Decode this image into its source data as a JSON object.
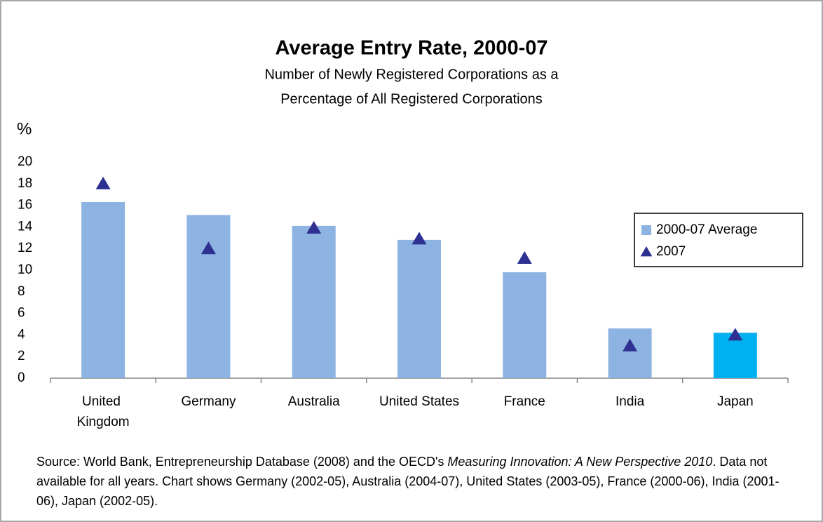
{
  "chart_data": {
    "type": "bar",
    "title": "Average Entry Rate, 2000-07",
    "subtitle": [
      "Number of Newly Registered Corporations as a",
      "Percentage of All Registered Corporations"
    ],
    "y_axis_label": "%",
    "categories": [
      "United Kingdom",
      "Germany",
      "Australia",
      "United States",
      "France",
      "India",
      "Japan"
    ],
    "series": [
      {
        "name": "2000-07 Average",
        "kind": "bar",
        "color": "#8db3e2",
        "colors": [
          "#8db3e2",
          "#8db3e2",
          "#8db3e2",
          "#8db3e2",
          "#8db3e2",
          "#8db3e2",
          "#00b0f0"
        ],
        "values": [
          16.3,
          15.1,
          14.1,
          12.8,
          9.8,
          4.6,
          4.2
        ]
      },
      {
        "name": "2007",
        "kind": "marker",
        "color": "#2e3192",
        "values": [
          18.0,
          12.0,
          13.9,
          12.9,
          11.1,
          3.0,
          4.0
        ]
      }
    ],
    "ylim": [
      0,
      20
    ],
    "yticks": [
      0,
      2,
      4,
      6,
      8,
      10,
      12,
      14,
      16,
      18,
      20
    ],
    "grid": false,
    "legend": "right",
    "source": [
      "Source: World Bank, Entrepreneurship Database (2008) and the OECD's ",
      "Measuring Innovation: A New Perspective 2010",
      ". Data not available for all years. Chart shows Germany (2002-05), Australia (2004-07), United States (2003-05), France (2000-06), India (2001-06), Japan (2002-05)."
    ]
  }
}
